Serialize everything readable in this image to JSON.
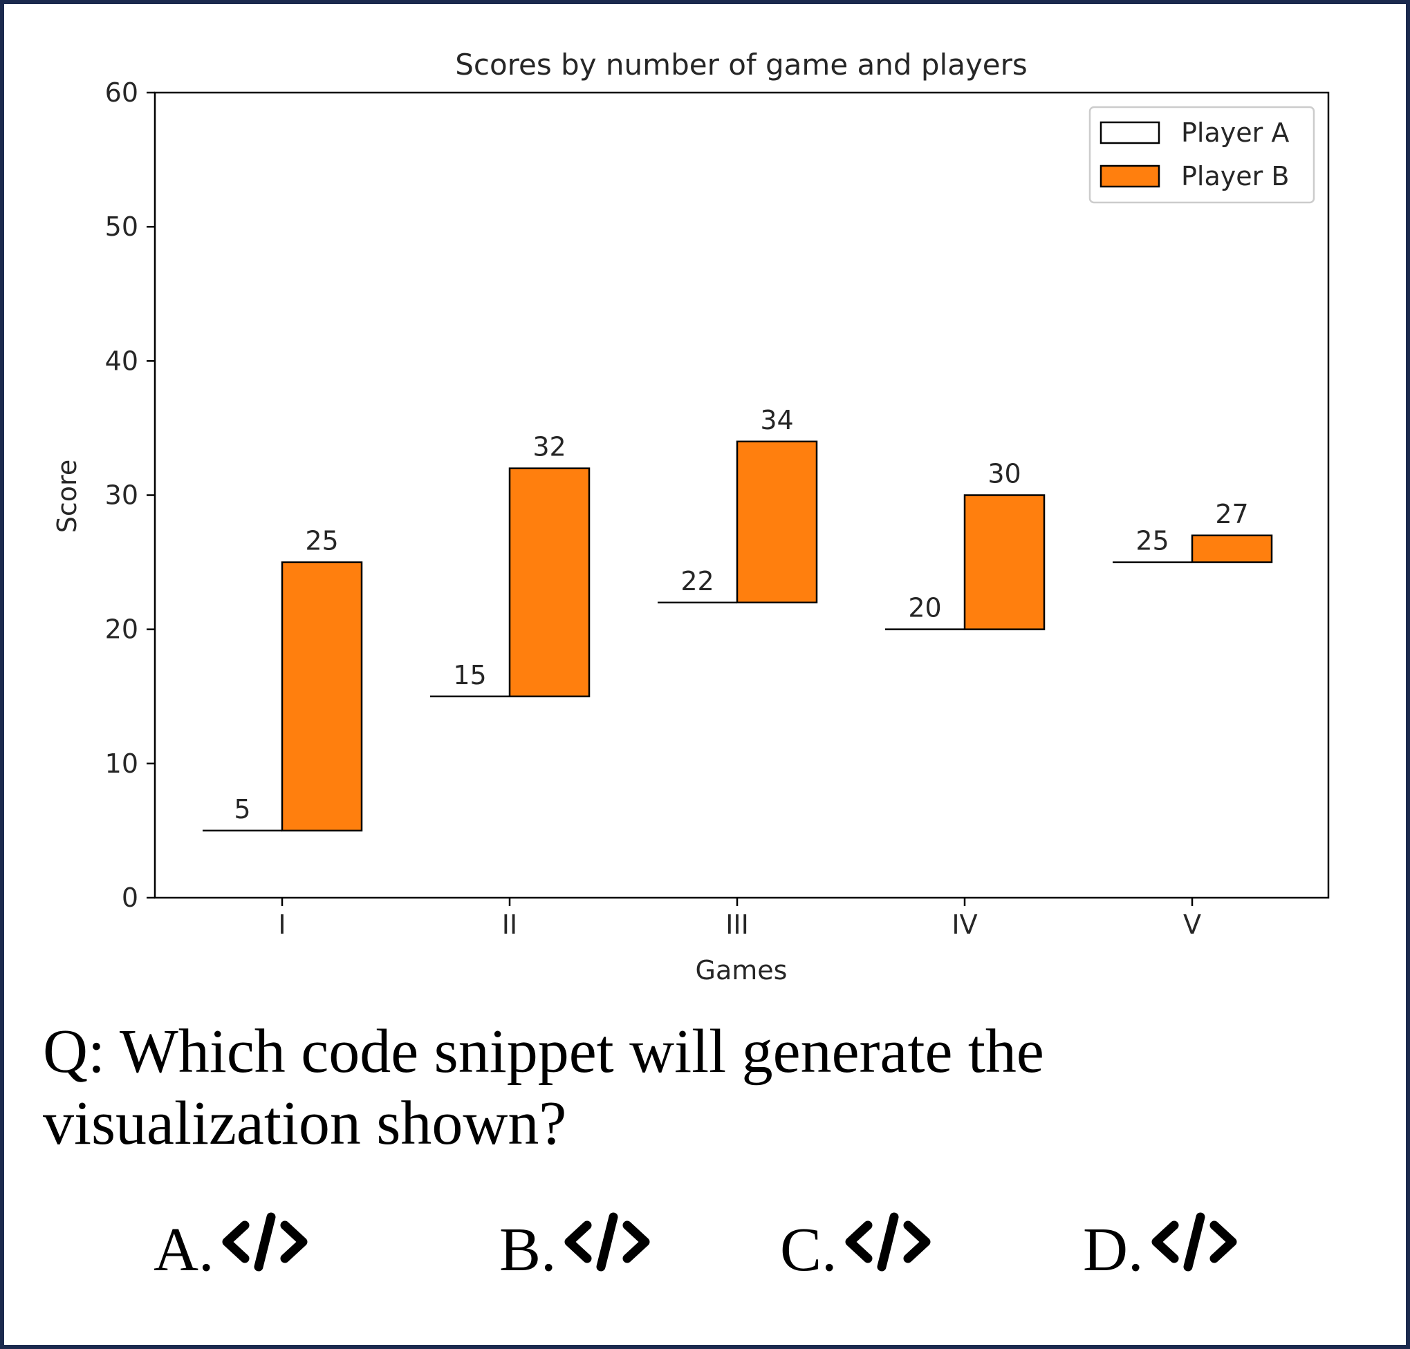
{
  "chart_data": {
    "type": "bar",
    "title": "Scores by number of game and players",
    "xlabel": "Games",
    "ylabel": "Score",
    "ylim": [
      0,
      60
    ],
    "yticks": [
      0,
      10,
      20,
      30,
      40,
      50,
      60
    ],
    "categories": [
      "I",
      "II",
      "III",
      "IV",
      "V"
    ],
    "series": [
      {
        "name": "Player A",
        "values": [
          5,
          15,
          22,
          20,
          25
        ],
        "color": "#ffffff",
        "stacked_on": null
      },
      {
        "name": "Player B",
        "values": [
          20,
          17,
          12,
          10,
          2
        ],
        "labels": [
          25,
          32,
          34,
          30,
          27
        ],
        "color": "#ff7f0e",
        "stacked_on": "Player A"
      }
    ],
    "legend_position": "upper-right",
    "grid": false
  },
  "question": {
    "text": "Q: Which code snippet will generate the visualization shown?",
    "options": [
      {
        "label": "A.",
        "icon": "code-icon"
      },
      {
        "label": "B.",
        "icon": "code-icon"
      },
      {
        "label": "C.",
        "icon": "code-icon"
      },
      {
        "label": "D.",
        "icon": "code-icon"
      }
    ]
  },
  "colors": {
    "frame": "#1b2a4e",
    "player_b": "#ff7f0e"
  }
}
